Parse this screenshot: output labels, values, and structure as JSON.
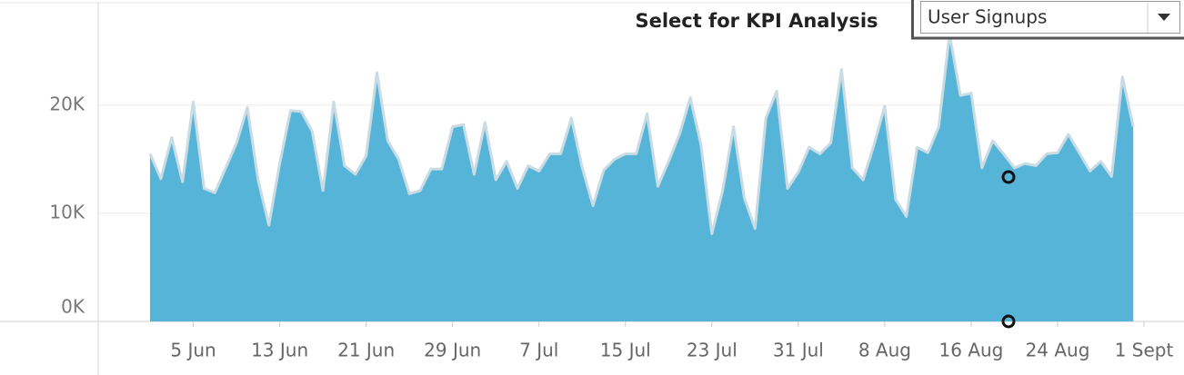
{
  "chart_data": {
    "type": "area",
    "title": "Select for KPI Analysis",
    "dropdown": "User Signups",
    "color": "#56b4d9",
    "line_color": "#c9dbe3",
    "xlim": [
      -4.8,
      95.7
    ],
    "xticks": [
      {
        "value": 4,
        "label": "5 Jun"
      },
      {
        "value": 12,
        "label": "13 Jun"
      },
      {
        "value": 20,
        "label": "21 Jun"
      },
      {
        "value": 28,
        "label": "29 Jun"
      },
      {
        "value": 36,
        "label": "7 Jul"
      },
      {
        "value": 44,
        "label": "15 Jul"
      },
      {
        "value": 52,
        "label": "23 Jul"
      },
      {
        "value": 60,
        "label": "31 Jul"
      },
      {
        "value": 68,
        "label": "8 Aug"
      },
      {
        "value": 76,
        "label": "16 Aug"
      },
      {
        "value": 84,
        "label": "24 Aug"
      },
      {
        "value": 92,
        "label": "1 Sept"
      }
    ],
    "ylim": [
      0,
      29300
    ],
    "yticks": [
      {
        "value": 0,
        "label": "0K"
      },
      {
        "value": 10000,
        "label": "10K"
      },
      {
        "value": 20000,
        "label": "20K"
      }
    ],
    "grid": true,
    "values": [
      15500,
      13200,
      17000,
      12900,
      20300,
      12300,
      11900,
      14200,
      16500,
      19800,
      13100,
      8900,
      14600,
      19500,
      19400,
      17600,
      12100,
      20300,
      14400,
      13600,
      15300,
      23000,
      16700,
      15000,
      11800,
      12100,
      14100,
      14100,
      18000,
      18200,
      13600,
      18400,
      13100,
      14800,
      12300,
      14400,
      13900,
      15500,
      15500,
      18800,
      14200,
      10700,
      14000,
      15000,
      15500,
      15500,
      19200,
      12500,
      14800,
      17300,
      20700,
      16300,
      8100,
      12100,
      18000,
      11400,
      8600,
      18800,
      21300,
      12300,
      13800,
      16100,
      15500,
      16500,
      23300,
      14200,
      13100,
      16300,
      19900,
      11300,
      9700,
      16100,
      15600,
      18000,
      26600,
      20900,
      21100,
      14200,
      16700,
      15500,
      14200,
      14600,
      14400,
      15500,
      15600,
      17300,
      15600,
      13900,
      14800,
      13400,
      22600,
      18000
    ]
  }
}
